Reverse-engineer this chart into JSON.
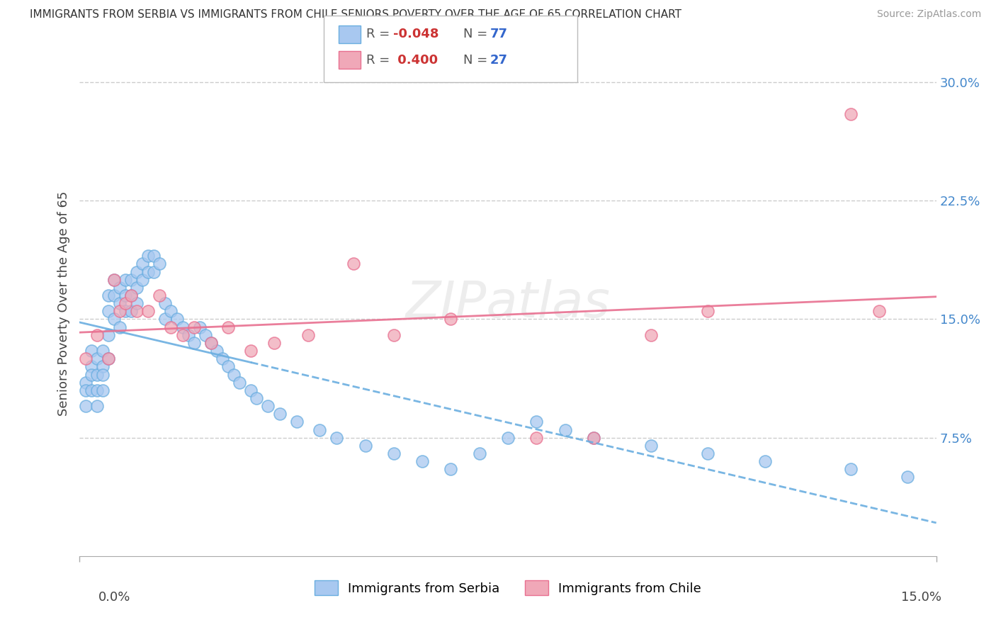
{
  "title": "IMMIGRANTS FROM SERBIA VS IMMIGRANTS FROM CHILE SENIORS POVERTY OVER THE AGE OF 65 CORRELATION CHART",
  "source": "Source: ZipAtlas.com",
  "ylabel": "Seniors Poverty Over the Age of 65",
  "xlim": [
    0.0,
    0.15
  ],
  "ylim": [
    0.0,
    0.32
  ],
  "yticks": [
    0.075,
    0.15,
    0.225,
    0.3
  ],
  "ytick_labels": [
    "7.5%",
    "15.0%",
    "22.5%",
    "30.0%"
  ],
  "color_serbia": "#a8c8f0",
  "color_chile": "#f0a8b8",
  "color_line_serbia": "#6aaee0",
  "color_line_chile": "#e87090",
  "serbia_x": [
    0.001,
    0.001,
    0.001,
    0.002,
    0.002,
    0.002,
    0.002,
    0.003,
    0.003,
    0.003,
    0.003,
    0.004,
    0.004,
    0.004,
    0.004,
    0.005,
    0.005,
    0.005,
    0.005,
    0.006,
    0.006,
    0.006,
    0.007,
    0.007,
    0.007,
    0.008,
    0.008,
    0.008,
    0.009,
    0.009,
    0.009,
    0.01,
    0.01,
    0.01,
    0.011,
    0.011,
    0.012,
    0.012,
    0.013,
    0.013,
    0.014,
    0.015,
    0.015,
    0.016,
    0.017,
    0.018,
    0.019,
    0.02,
    0.021,
    0.022,
    0.023,
    0.024,
    0.025,
    0.026,
    0.027,
    0.028,
    0.03,
    0.031,
    0.033,
    0.035,
    0.038,
    0.042,
    0.045,
    0.05,
    0.055,
    0.06,
    0.065,
    0.07,
    0.075,
    0.08,
    0.085,
    0.09,
    0.1,
    0.11,
    0.12,
    0.135,
    0.145
  ],
  "serbia_y": [
    0.11,
    0.105,
    0.095,
    0.13,
    0.12,
    0.115,
    0.105,
    0.125,
    0.115,
    0.105,
    0.095,
    0.13,
    0.12,
    0.115,
    0.105,
    0.165,
    0.155,
    0.14,
    0.125,
    0.175,
    0.165,
    0.15,
    0.17,
    0.16,
    0.145,
    0.175,
    0.165,
    0.155,
    0.175,
    0.165,
    0.155,
    0.18,
    0.17,
    0.16,
    0.185,
    0.175,
    0.19,
    0.18,
    0.19,
    0.18,
    0.185,
    0.16,
    0.15,
    0.155,
    0.15,
    0.145,
    0.14,
    0.135,
    0.145,
    0.14,
    0.135,
    0.13,
    0.125,
    0.12,
    0.115,
    0.11,
    0.105,
    0.1,
    0.095,
    0.09,
    0.085,
    0.08,
    0.075,
    0.07,
    0.065,
    0.06,
    0.055,
    0.065,
    0.075,
    0.085,
    0.08,
    0.075,
    0.07,
    0.065,
    0.06,
    0.055,
    0.05
  ],
  "chile_x": [
    0.001,
    0.003,
    0.005,
    0.006,
    0.007,
    0.008,
    0.009,
    0.01,
    0.012,
    0.014,
    0.016,
    0.018,
    0.02,
    0.023,
    0.026,
    0.03,
    0.034,
    0.04,
    0.048,
    0.055,
    0.065,
    0.08,
    0.09,
    0.1,
    0.11,
    0.135,
    0.14
  ],
  "chile_y": [
    0.125,
    0.14,
    0.125,
    0.175,
    0.155,
    0.16,
    0.165,
    0.155,
    0.155,
    0.165,
    0.145,
    0.14,
    0.145,
    0.135,
    0.145,
    0.13,
    0.135,
    0.14,
    0.185,
    0.14,
    0.15,
    0.075,
    0.075,
    0.14,
    0.155,
    0.28,
    0.155
  ]
}
